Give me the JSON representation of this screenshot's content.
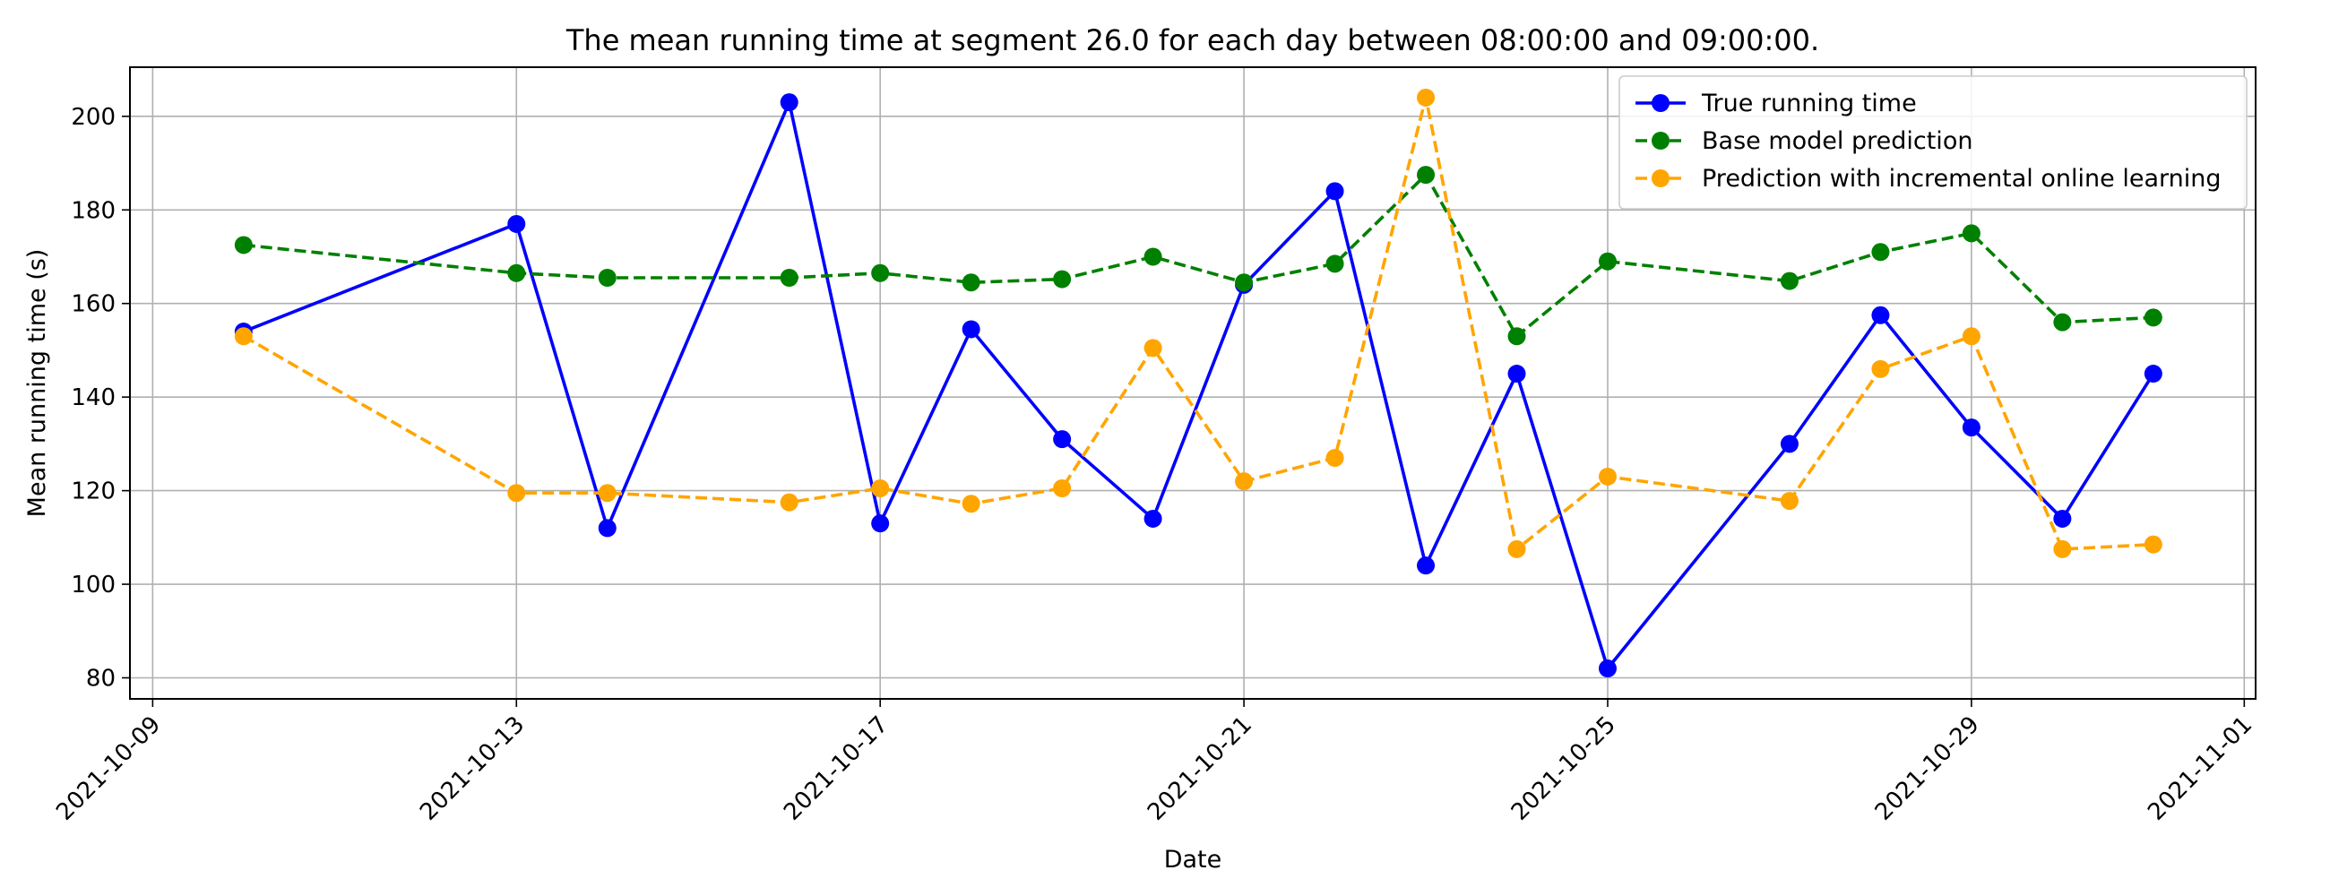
{
  "chart_data": {
    "type": "line",
    "title": "The mean running time at segment 26.0 for each day between 08:00:00 and 09:00:00.",
    "xlabel": "Date",
    "ylabel": "Mean running time (s)",
    "x_ticks": [
      "2021-10-09",
      "2021-10-13",
      "2021-10-17",
      "2021-10-21",
      "2021-10-25",
      "2021-10-29",
      "2021-11-01"
    ],
    "y_ticks": [
      80,
      100,
      120,
      140,
      160,
      180,
      200
    ],
    "xlim": [
      "2021-10-08T18:00",
      "2021-11-01T03:00"
    ],
    "ylim": [
      75.5,
      210.5
    ],
    "grid": true,
    "legend_position": "top-right",
    "series": [
      {
        "name": "True running time",
        "color": "#0000ff",
        "line_style": "solid",
        "marker": "circle",
        "points": [
          [
            "2021-10-10",
            154
          ],
          [
            "2021-10-13",
            177
          ],
          [
            "2021-10-14",
            112
          ],
          [
            "2021-10-16",
            203
          ],
          [
            "2021-10-17",
            113
          ],
          [
            "2021-10-18",
            154.5
          ],
          [
            "2021-10-19",
            131
          ],
          [
            "2021-10-20",
            114
          ],
          [
            "2021-10-21",
            164
          ],
          [
            "2021-10-22",
            184
          ],
          [
            "2021-10-23",
            104
          ],
          [
            "2021-10-24",
            145
          ],
          [
            "2021-10-25",
            82
          ],
          [
            "2021-10-27",
            130
          ],
          [
            "2021-10-28",
            157.5
          ],
          [
            "2021-10-29",
            133.5
          ],
          [
            "2021-10-30",
            114
          ],
          [
            "2021-10-31",
            145
          ]
        ]
      },
      {
        "name": "Base model prediction",
        "color": "#008000",
        "line_style": "dashed",
        "marker": "circle",
        "points": [
          [
            "2021-10-10",
            172.5
          ],
          [
            "2021-10-13",
            166.5
          ],
          [
            "2021-10-14",
            165.5
          ],
          [
            "2021-10-16",
            165.5
          ],
          [
            "2021-10-17",
            166.5
          ],
          [
            "2021-10-18",
            164.5
          ],
          [
            "2021-10-19",
            165.2
          ],
          [
            "2021-10-20",
            170
          ],
          [
            "2021-10-21",
            164.5
          ],
          [
            "2021-10-22",
            168.5
          ],
          [
            "2021-10-23",
            187.5
          ],
          [
            "2021-10-24",
            153
          ],
          [
            "2021-10-25",
            169
          ],
          [
            "2021-10-27",
            164.8
          ],
          [
            "2021-10-28",
            171
          ],
          [
            "2021-10-29",
            175
          ],
          [
            "2021-10-30",
            156
          ],
          [
            "2021-10-31",
            157
          ]
        ]
      },
      {
        "name": "Prediction with incremental online learning",
        "color": "#ffa500",
        "line_style": "dashed",
        "marker": "circle",
        "points": [
          [
            "2021-10-10",
            153
          ],
          [
            "2021-10-13",
            119.5
          ],
          [
            "2021-10-14",
            119.5
          ],
          [
            "2021-10-16",
            117.5
          ],
          [
            "2021-10-17",
            120.5
          ],
          [
            "2021-10-18",
            117.2
          ],
          [
            "2021-10-19",
            120.5
          ],
          [
            "2021-10-20",
            150.5
          ],
          [
            "2021-10-21",
            122
          ],
          [
            "2021-10-22",
            127
          ],
          [
            "2021-10-23",
            204
          ],
          [
            "2021-10-24",
            107.5
          ],
          [
            "2021-10-25",
            123
          ],
          [
            "2021-10-27",
            117.8
          ],
          [
            "2021-10-28",
            146
          ],
          [
            "2021-10-29",
            153
          ],
          [
            "2021-10-30",
            107.5
          ],
          [
            "2021-10-31",
            108.5
          ]
        ]
      }
    ]
  }
}
